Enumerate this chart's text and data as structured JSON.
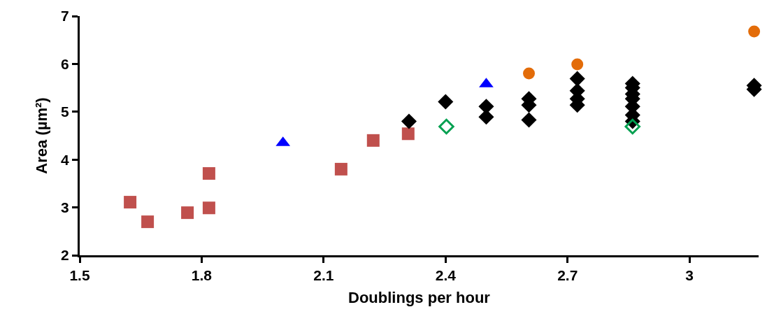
{
  "chart_data": {
    "type": "scatter",
    "xlabel": "Doublings per hour",
    "ylabel": "Area (µm²)",
    "xlim": [
      1.5,
      3.17
    ],
    "xticks": [
      1.5,
      1.8,
      2.1,
      2.4,
      2.7,
      3
    ],
    "ylim": [
      2,
      7
    ],
    "yticks": [
      2,
      3,
      4,
      5,
      6,
      7
    ],
    "grid": false,
    "series": [
      {
        "color": "#c0504d",
        "marker": "square",
        "x": [
          1.624,
          1.667,
          1.765,
          1.818,
          1.818,
          2.143,
          2.222,
          2.308
        ],
        "values": [
          3.11,
          2.7,
          2.89,
          2.99,
          3.71,
          3.8,
          4.4,
          4.54
        ]
      },
      {
        "color": "#0000ff",
        "marker": "triangle",
        "x": [
          2.0,
          2.5
        ],
        "values": [
          4.35,
          5.58
        ]
      },
      {
        "color": "#e36c09",
        "marker": "circle",
        "x": [
          2.605,
          2.724,
          3.159
        ],
        "values": [
          5.8,
          5.99,
          6.68
        ]
      },
      {
        "color": "#000000",
        "marker": "diamond",
        "x": [
          2.31,
          2.4,
          2.5,
          2.5,
          2.605,
          2.605,
          2.605,
          2.724,
          2.724,
          2.724,
          2.724,
          2.86,
          2.86,
          2.86,
          2.86,
          2.86,
          2.86,
          2.86,
          3.159,
          3.159
        ],
        "values": [
          4.8,
          5.21,
          5.11,
          4.89,
          5.27,
          5.14,
          4.83,
          5.69,
          5.44,
          5.27,
          5.14,
          5.59,
          5.5,
          5.37,
          5.27,
          5.11,
          4.93,
          4.8,
          5.55,
          5.47
        ]
      },
      {
        "color": "#00a050",
        "marker": "diamond-open",
        "x": [
          2.402,
          2.86
        ],
        "values": [
          4.69,
          4.69
        ]
      }
    ]
  }
}
